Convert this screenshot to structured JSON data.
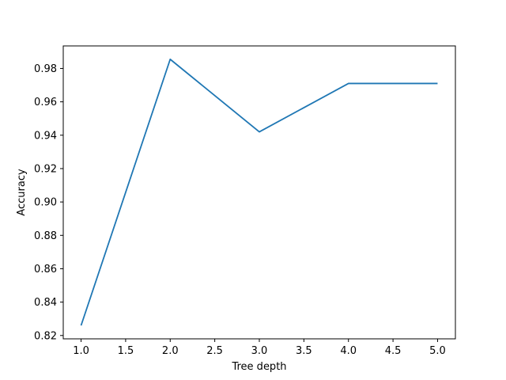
{
  "chart_data": {
    "type": "line",
    "title": "",
    "xlabel": "Tree depth",
    "ylabel": "Accuracy",
    "x": [
      1,
      2,
      3,
      4,
      5
    ],
    "series": [
      {
        "values": [
          0.826,
          0.9855,
          0.942,
          0.971,
          0.971
        ],
        "color": "#1f77b4"
      }
    ],
    "xlim": [
      0.8,
      5.2
    ],
    "ylim": [
      0.818,
      0.9935
    ],
    "xticks": [
      1.0,
      1.5,
      2.0,
      2.5,
      3.0,
      3.5,
      4.0,
      4.5,
      5.0
    ],
    "xtick_labels": [
      "1.0",
      "1.5",
      "2.0",
      "2.5",
      "3.0",
      "3.5",
      "4.0",
      "4.5",
      "5.0"
    ],
    "yticks": [
      0.82,
      0.84,
      0.86,
      0.88,
      0.9,
      0.92,
      0.94,
      0.96,
      0.98
    ],
    "ytick_labels": [
      "0.82",
      "0.84",
      "0.86",
      "0.88",
      "0.90",
      "0.92",
      "0.94",
      "0.96",
      "0.98"
    ],
    "grid": false,
    "legend": false
  }
}
